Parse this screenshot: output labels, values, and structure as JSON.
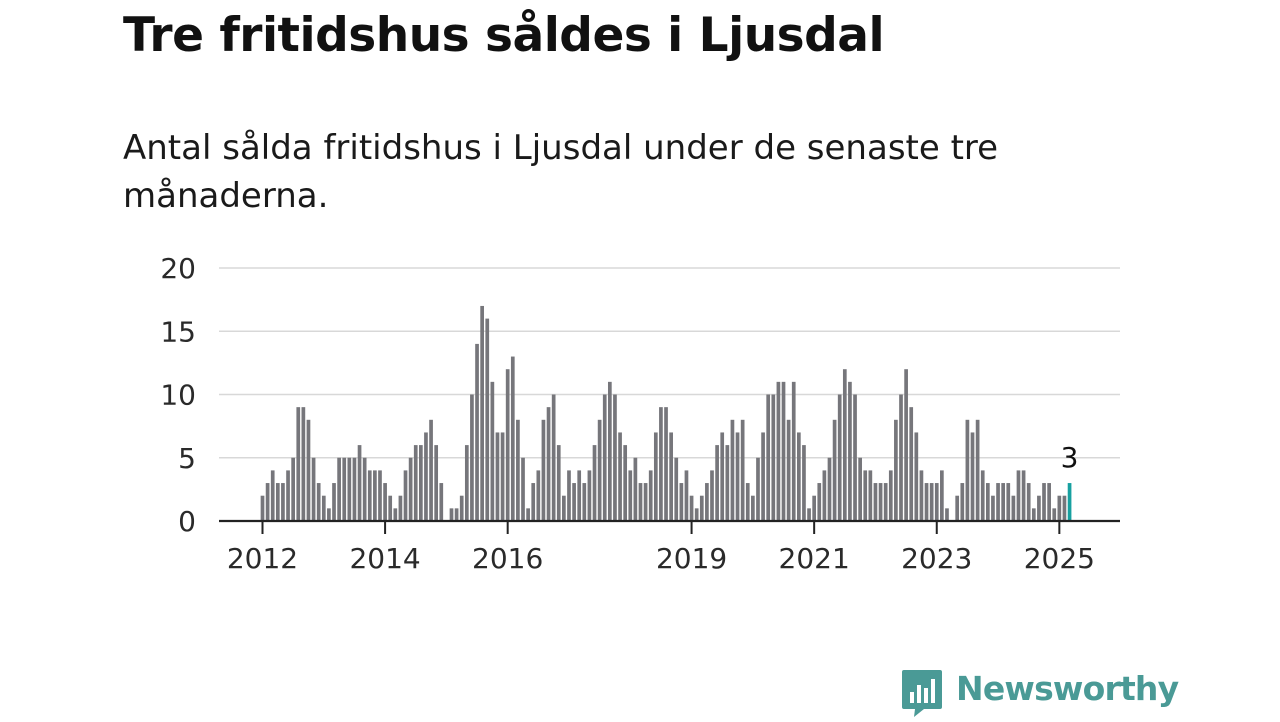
{
  "title": "Tre fritidshus såldes i Ljusdal",
  "subtitle": "Antal sålda fritidshus i Ljusdal under de senaste tre månaderna.",
  "brand": {
    "name": "Newsworthy",
    "color": "#4a9a96",
    "icon": "bar-chart-speech-bubble-icon"
  },
  "chart_data": {
    "type": "bar",
    "start": "2012-01",
    "frequency": "monthly",
    "values": [
      2,
      3,
      4,
      3,
      3,
      4,
      5,
      9,
      9,
      8,
      5,
      3,
      2,
      1,
      3,
      5,
      5,
      5,
      5,
      6,
      5,
      4,
      4,
      4,
      3,
      2,
      1,
      2,
      4,
      5,
      6,
      6,
      7,
      8,
      6,
      3,
      0,
      1,
      1,
      2,
      6,
      10,
      14,
      17,
      16,
      11,
      7,
      7,
      12,
      13,
      8,
      5,
      1,
      3,
      4,
      8,
      9,
      10,
      6,
      2,
      4,
      3,
      4,
      3,
      4,
      6,
      8,
      10,
      11,
      10,
      7,
      6,
      4,
      5,
      3,
      3,
      4,
      7,
      9,
      9,
      7,
      5,
      3,
      4,
      2,
      1,
      2,
      3,
      4,
      6,
      7,
      6,
      8,
      7,
      8,
      3,
      2,
      5,
      7,
      10,
      10,
      11,
      11,
      8,
      11,
      7,
      6,
      1,
      2,
      3,
      4,
      5,
      8,
      10,
      12,
      11,
      10,
      5,
      4,
      4,
      3,
      3,
      3,
      4,
      8,
      10,
      12,
      9,
      7,
      4,
      3,
      3,
      3,
      4,
      1,
      0,
      2,
      3,
      8,
      7,
      8,
      4,
      3,
      2,
      3,
      3,
      3,
      2,
      4,
      4,
      3,
      1,
      2,
      3,
      3,
      1,
      2,
      2,
      3
    ],
    "highlight": {
      "label": "3",
      "value": 3,
      "color": "#17a0a0"
    },
    "bar_color": "#76767b",
    "ylim": [
      0,
      20
    ],
    "y_ticks": [
      0,
      5,
      10,
      15,
      20
    ],
    "x_ticks": [
      {
        "label": "2012",
        "date": "2012-01"
      },
      {
        "label": "2014",
        "date": "2014-01"
      },
      {
        "label": "2016",
        "date": "2016-01"
      },
      {
        "label": "2019",
        "date": "2019-01"
      },
      {
        "label": "2021",
        "date": "2021-01"
      },
      {
        "label": "2023",
        "date": "2023-01"
      },
      {
        "label": "2025",
        "date": "2025-01"
      }
    ],
    "grid": true,
    "xlabel": "",
    "ylabel": ""
  }
}
